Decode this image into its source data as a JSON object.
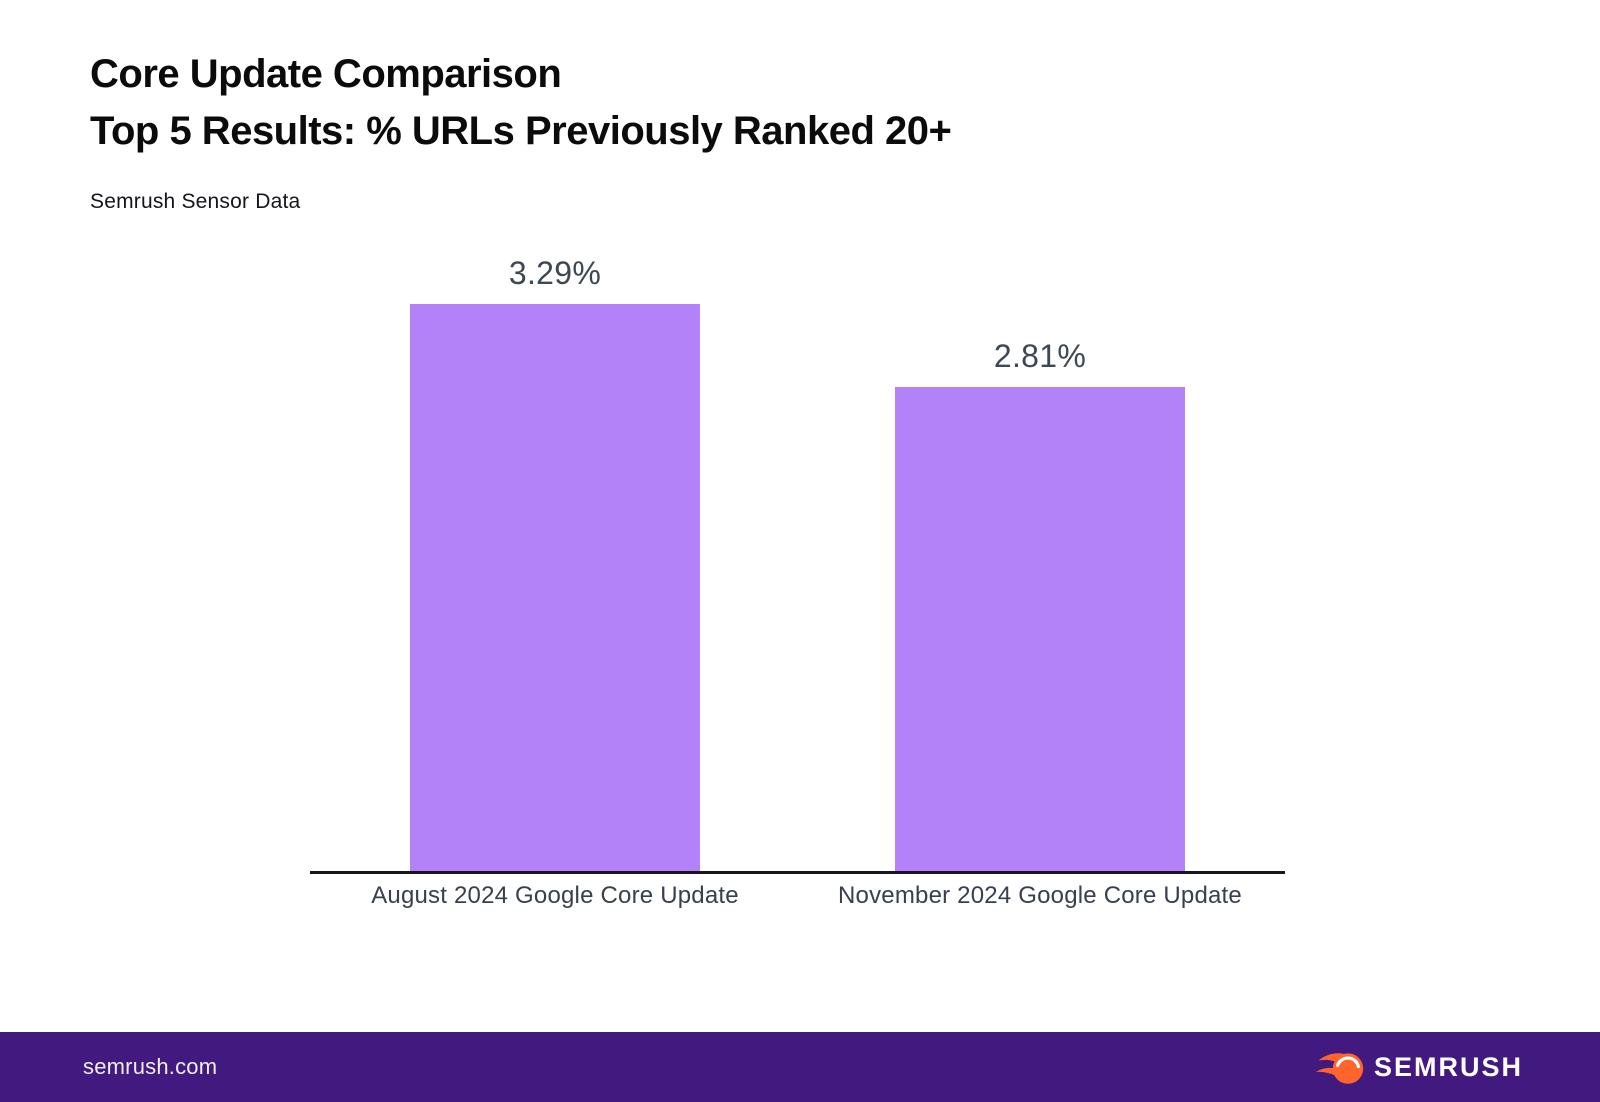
{
  "header": {
    "title_line1": "Core Update Comparison",
    "title_line2": "Top 5 Results: % URLs Previously Ranked 20+",
    "source": "Semrush Sensor Data"
  },
  "chart_data": {
    "type": "bar",
    "title": "Core Update Comparison — Top 5 Results: % URLs Previously Ranked 20+",
    "subtitle": "Semrush Sensor Data",
    "categories": [
      "August 2024 Google Core Update",
      "November 2024 Google Core Update"
    ],
    "values": [
      3.29,
      2.81
    ],
    "value_labels": [
      "3.29%",
      "2.81%"
    ],
    "xlabel": "",
    "ylabel": "",
    "ylim": [
      0,
      3.29
    ],
    "bar_color": "#b381f8",
    "grid": false,
    "legend": false
  },
  "footer": {
    "website": "semrush.com",
    "brand": "SEMRUSH",
    "background": "#42197e",
    "logo_icon": "semrush-comet-icon",
    "logo_color": "#ff642d"
  }
}
